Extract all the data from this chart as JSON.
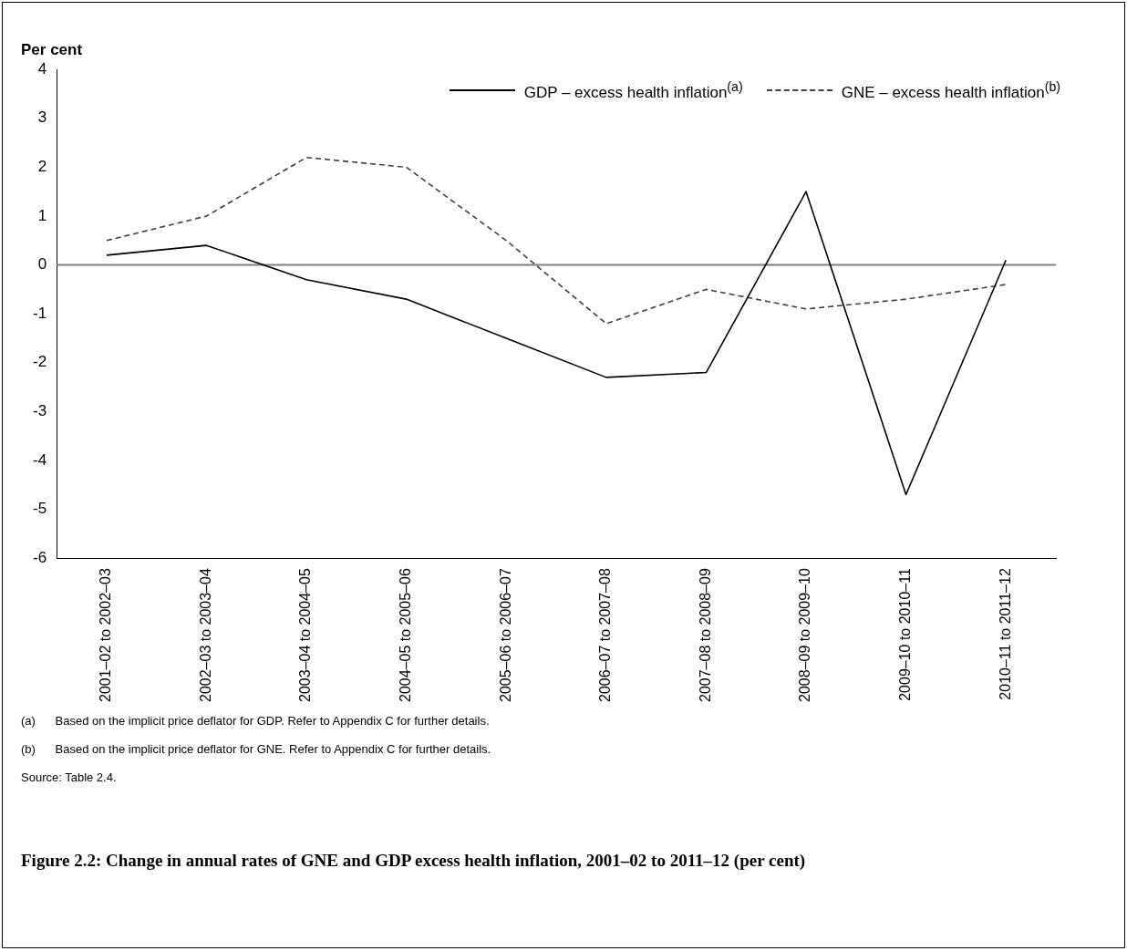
{
  "chart_data": {
    "type": "line",
    "title": "Figure 2.2: Change in annual rates of GNE and GDP excess health inflation, 2001–02 to 2011–12 (per cent)",
    "ylabel": "Per cent",
    "categories": [
      "2001–02 to 2002–03",
      "2002–03 to 2003–04",
      "2003–04 to 2004–05",
      "2004–05 to 2005–06",
      "2005–06 to 2006–07",
      "2006–07 to 2007–08",
      "2007–08 to 2008–09",
      "2008–09 to 2009–10",
      "2009–10 to 2010–11",
      "2010–11 to 2011–12"
    ],
    "series": [
      {
        "name": "GDP – excess health inflation$^{(a)}$",
        "color": "#000000",
        "line_style": "solid",
        "values": [
          0.2,
          0.4,
          -0.3,
          -0.7,
          -1.5,
          -2.3,
          -2.2,
          1.5,
          -4.7,
          0.1
        ]
      },
      {
        "name": "GNE – excess health inflation$^{(b)}$",
        "color": "#404040",
        "line_style": "dashed",
        "values": [
          0.5,
          1.0,
          2.2,
          2.0,
          0.5,
          -1.2,
          -0.5,
          -0.9,
          -0.7,
          -0.4
        ]
      }
    ],
    "ylim": [
      -6,
      4
    ],
    "yticks": [
      -6,
      -5,
      -4,
      -3,
      -2,
      -1,
      0,
      1,
      2,
      3,
      4
    ],
    "grid": false,
    "legend": "top right",
    "marker": "none",
    "ref_lines": [
      {
        "axis": "y",
        "value": 0,
        "color": "#808080"
      }
    ],
    "annotations": [
      "(a)      Based on the implicit price deflator for GDP. Refer to Appendix C for further details.",
      "(b)      Based on the implicit price deflator for GNE. Refer to Appendix C for further details.",
      "Source: Table 2.4."
    ]
  }
}
